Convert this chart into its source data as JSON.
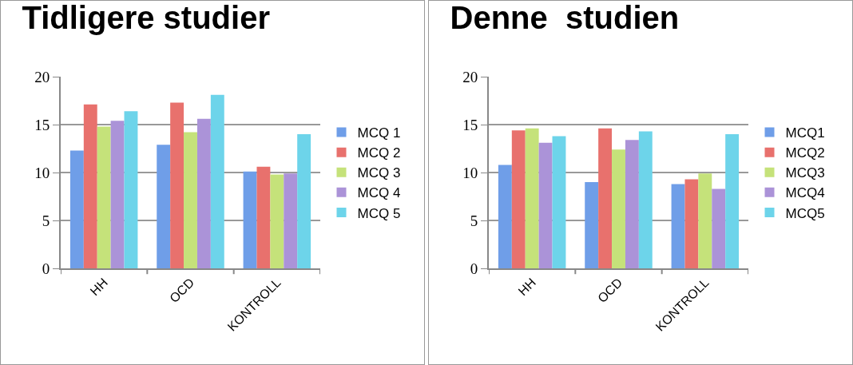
{
  "chart_data": [
    {
      "type": "bar",
      "title": "Tidligere studier",
      "categories": [
        "HH",
        "OCD",
        "KONTROLL"
      ],
      "ylim": [
        0,
        20
      ],
      "yticks": [
        0,
        5,
        10,
        15,
        20
      ],
      "grid": "y",
      "legend": "right",
      "series": [
        {
          "name": "MCQ 1",
          "color": "#6f9ee8",
          "values": [
            12.3,
            12.9,
            10.1
          ]
        },
        {
          "name": "MCQ 2",
          "color": "#e8716d",
          "values": [
            17.1,
            17.3,
            10.6
          ]
        },
        {
          "name": "MCQ 3",
          "color": "#c5e27a",
          "values": [
            14.8,
            14.2,
            9.8
          ]
        },
        {
          "name": "MCQ 4",
          "color": "#ab93d8",
          "values": [
            15.4,
            15.6,
            9.9
          ]
        },
        {
          "name": "MCQ 5",
          "color": "#6dd4ea",
          "values": [
            16.4,
            18.1,
            14.0
          ]
        }
      ]
    },
    {
      "type": "bar",
      "title": "Denne  studien",
      "categories": [
        "HH",
        "OCD",
        "KONTROLL"
      ],
      "ylim": [
        0,
        20
      ],
      "yticks": [
        0,
        5,
        10,
        15,
        20
      ],
      "grid": "y",
      "legend": "right",
      "series": [
        {
          "name": "MCQ1",
          "color": "#6f9ee8",
          "values": [
            10.8,
            9.0,
            8.8
          ]
        },
        {
          "name": "MCQ2",
          "color": "#e8716d",
          "values": [
            14.4,
            14.6,
            9.3
          ]
        },
        {
          "name": "MCQ3",
          "color": "#c5e27a",
          "values": [
            14.6,
            12.4,
            9.9
          ]
        },
        {
          "name": "MCQ4",
          "color": "#ab93d8",
          "values": [
            13.1,
            13.4,
            8.3
          ]
        },
        {
          "name": "MCQ5",
          "color": "#6dd4ea",
          "values": [
            13.8,
            14.3,
            14.0
          ]
        }
      ]
    }
  ]
}
